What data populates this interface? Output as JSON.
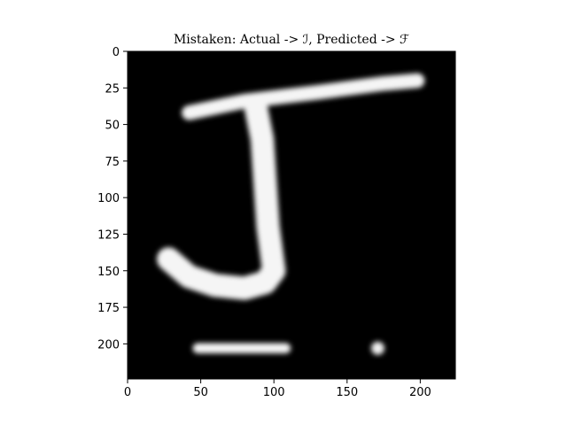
{
  "chart_data": {
    "type": "heatmap",
    "title": "Mistaken: Actual -> ℐ, Predicted -> ℱ",
    "xlabel": "",
    "ylabel": "",
    "xlim": [
      0,
      224
    ],
    "ylim": [
      224,
      0
    ],
    "xticks": [
      "0",
      "50",
      "100",
      "150",
      "200"
    ],
    "yticks": [
      "0",
      "25",
      "50",
      "75",
      "100",
      "125",
      "150",
      "175",
      "200"
    ],
    "colormap": "gray",
    "background_color": "#000000",
    "image_description_strokes": [
      {
        "shape": "stroke",
        "points": [
          [
            42,
            42
          ],
          [
            80,
            34
          ],
          [
            130,
            28
          ],
          [
            175,
            22
          ],
          [
            198,
            20
          ]
        ],
        "width": 10
      },
      {
        "shape": "stroke",
        "points": [
          [
            88,
            40
          ],
          [
            92,
            60
          ],
          [
            94,
            90
          ],
          [
            96,
            120
          ],
          [
            100,
            150
          ],
          [
            94,
            158
          ],
          [
            80,
            162
          ],
          [
            60,
            160
          ],
          [
            42,
            154
          ],
          [
            28,
            142
          ]
        ],
        "width": 16
      },
      {
        "shape": "stroke",
        "points": [
          [
            48,
            203
          ],
          [
            108,
            203
          ]
        ],
        "width": 7
      },
      {
        "shape": "dot",
        "points": [
          [
            171,
            203
          ]
        ],
        "width": 9
      }
    ],
    "grid": false,
    "legend": false
  }
}
